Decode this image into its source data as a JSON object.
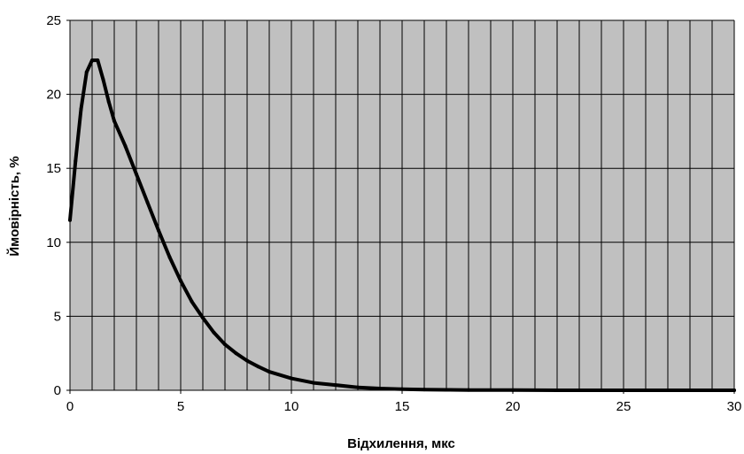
{
  "chart_data": {
    "type": "line",
    "xlabel": "Відхилення, мкс",
    "ylabel": "Ймовірність, %",
    "xlim": [
      0,
      30
    ],
    "ylim": [
      0,
      25
    ],
    "x_ticks": [
      0,
      5,
      10,
      15,
      20,
      25,
      30
    ],
    "y_ticks": [
      0,
      5,
      10,
      15,
      20,
      25
    ],
    "x_minor_step": 1,
    "grid": true,
    "plot_background": "#c0c0c0",
    "line_color": "#000000",
    "series": [
      {
        "x": [
          0,
          0.25,
          0.5,
          0.75,
          1.0,
          1.25,
          1.5,
          1.75,
          2.0,
          2.5,
          3.0,
          3.5,
          4.0,
          4.5,
          5.0,
          5.5,
          6.0,
          6.5,
          7.0,
          7.5,
          8.0,
          8.5,
          9.0,
          10.0,
          11.0,
          12.0,
          13.0,
          14.0,
          15.0,
          16.0,
          17.0,
          18.0,
          20.0,
          22.0,
          25.0,
          28.0,
          30.0
        ],
        "y": [
          11.5,
          15.5,
          19.0,
          21.5,
          22.3,
          22.3,
          21.0,
          19.5,
          18.2,
          16.5,
          14.6,
          12.7,
          10.8,
          9.0,
          7.4,
          6.0,
          4.9,
          3.9,
          3.1,
          2.5,
          2.0,
          1.6,
          1.25,
          0.8,
          0.5,
          0.35,
          0.2,
          0.12,
          0.08,
          0.05,
          0.03,
          0.02,
          0.01,
          0.0,
          0.0,
          0.0,
          0.0
        ]
      }
    ]
  }
}
